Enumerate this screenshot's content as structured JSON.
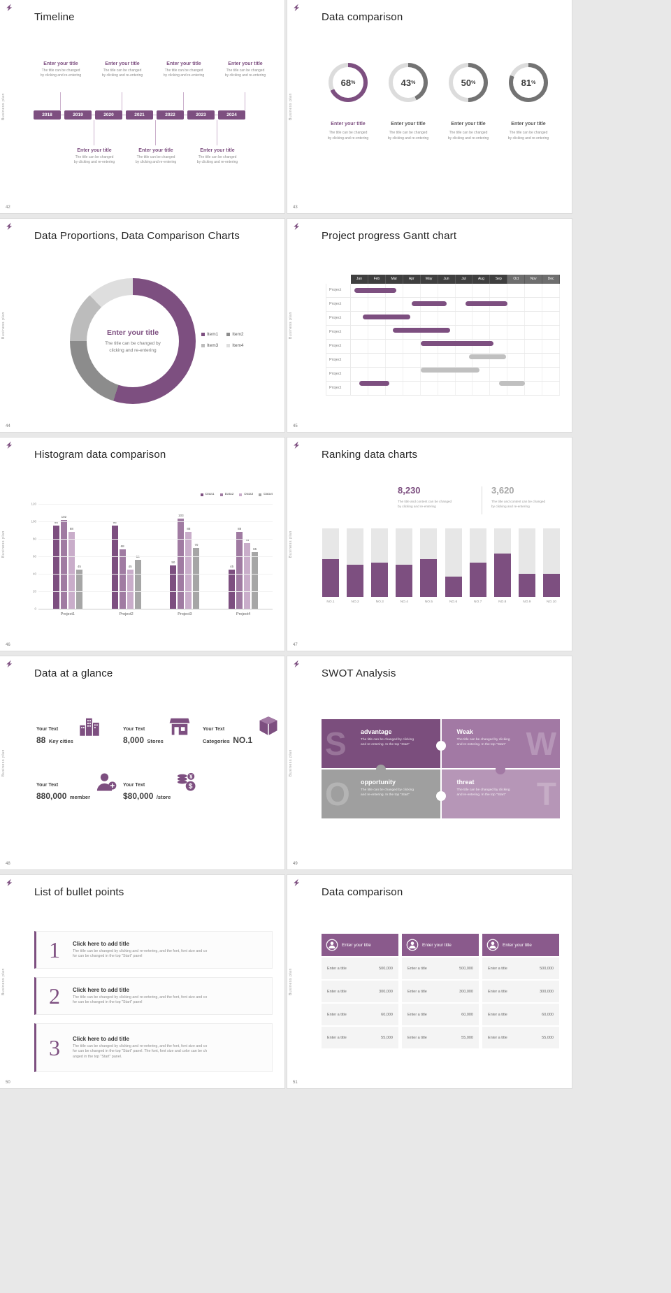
{
  "theme": {
    "purple": "#7d4f80",
    "purple_mid": "#a279a4",
    "purple_light": "#c9adca",
    "purple_pale": "#b696b7",
    "table_header_purple": "#8a5a8c",
    "gray_dark": "#595959",
    "gray_mid": "#a6a6a6",
    "gray_bar": "#c0c0c0",
    "track": "#dcdcdc",
    "gantt_header_dark": "#3f3f3f",
    "gantt_header_light": "#6e6e6e",
    "background": "#e8e8e8"
  },
  "common": {
    "brand_vertical": "Business plan",
    "logo": "brand-logo"
  },
  "slides": {
    "s42": {
      "number": "42",
      "title": "Timeline",
      "years": [
        "2018",
        "2019",
        "2020",
        "2021",
        "2022",
        "2023",
        "2024"
      ],
      "item_title": "Enter your title",
      "caption1": "The title can be changed",
      "caption2": "by clicking and re-entering",
      "top_items": 4,
      "bottom_items": 3
    },
    "s43": {
      "number": "43",
      "title": "Data comparison",
      "caption1": "The title can be changed",
      "caption2": "by clicking and re-entering",
      "rings": [
        {
          "percent": 68,
          "color": "#7d4f80",
          "label": "Enter your title",
          "label_color": "#7d4f80"
        },
        {
          "percent": 43,
          "color": "#737373",
          "label": "Enter your title",
          "label_color": "#595959"
        },
        {
          "percent": 50,
          "color": "#737373",
          "label": "Enter your title",
          "label_color": "#595959"
        },
        {
          "percent": 81,
          "color": "#737373",
          "label": "Enter your title",
          "label_color": "#595959"
        }
      ]
    },
    "s44": {
      "number": "44",
      "title": "Data Proportions, Data Comparison Charts",
      "center_title": "Enter your title",
      "center_line1": "The title can be changed by",
      "center_line2": "clicking and re-entering",
      "chart": {
        "type": "pie",
        "segments": [
          {
            "label": "Item1",
            "value": 55,
            "color": "#7d4f80"
          },
          {
            "label": "Item2",
            "value": 20,
            "color": "#8c8c8c"
          },
          {
            "label": "Item3",
            "value": 13,
            "color": "#bcbcbc"
          },
          {
            "label": "Item4",
            "value": 12,
            "color": "#dedede"
          }
        ]
      }
    },
    "s45": {
      "number": "45",
      "title": "Project progress Gantt chart",
      "months": [
        "Jan",
        "Feb",
        "Mar",
        "Apr",
        "May",
        "Jun",
        "Jul",
        "Aug",
        "Sep",
        "Oct",
        "Nov",
        "Dec"
      ],
      "row_label": "Project",
      "chart": {
        "type": "gantt",
        "rows": [
          {
            "bars": [
              {
                "start": 0.2,
                "end": 2.6,
                "color": "purple"
              }
            ]
          },
          {
            "bars": [
              {
                "start": 3.5,
                "end": 5.5,
                "color": "purple"
              },
              {
                "start": 6.6,
                "end": 9.0,
                "color": "purple"
              }
            ]
          },
          {
            "bars": [
              {
                "start": 0.7,
                "end": 3.4,
                "color": "purple"
              }
            ]
          },
          {
            "bars": [
              {
                "start": 2.4,
                "end": 5.7,
                "color": "purple"
              }
            ]
          },
          {
            "bars": [
              {
                "start": 4.0,
                "end": 8.2,
                "color": "purple"
              }
            ]
          },
          {
            "bars": [
              {
                "start": 6.8,
                "end": 8.9,
                "color": "gray"
              }
            ]
          },
          {
            "bars": [
              {
                "start": 4.0,
                "end": 7.4,
                "color": "gray"
              }
            ]
          },
          {
            "bars": [
              {
                "start": 0.5,
                "end": 2.2,
                "color": "purple"
              },
              {
                "start": 8.5,
                "end": 10.0,
                "color": "gray"
              }
            ]
          }
        ]
      }
    },
    "s46": {
      "number": "46",
      "title": "Histogram data comparison",
      "chart": {
        "type": "bar",
        "categories": [
          "Project1",
          "Project2",
          "Project3",
          "Project4"
        ],
        "series": [
          {
            "name": "Data1",
            "color": "#7d4f80",
            "values": [
              95,
              95,
              50,
              45
            ]
          },
          {
            "name": "Data2",
            "color": "#a07ba2",
            "values": [
              102,
              68,
              103,
              88
            ]
          },
          {
            "name": "Data3",
            "color": "#c9adca",
            "values": [
              88,
              45,
              88,
              75
            ]
          },
          {
            "name": "Data4",
            "color": "#a6a6a6",
            "values": [
              45,
              56,
              70,
              65
            ]
          }
        ],
        "ymax": 120,
        "yticks": [
          0,
          20,
          40,
          60,
          80,
          100,
          120
        ]
      }
    },
    "s47": {
      "number": "47",
      "title": "Ranking data charts",
      "stat1": {
        "value": "8,230",
        "color": "#7d4f80",
        "line1": "The title and content can be changed",
        "line2": "by clicking and re-entering"
      },
      "stat2": {
        "value": "3,620",
        "color": "#a6a6a6",
        "line1": "The title and content can be changed",
        "line2": "by clicking and re-entering"
      },
      "chart": {
        "type": "bar",
        "categories": [
          "NO.1",
          "NO.2",
          "NO.3",
          "NO.4",
          "NO.5",
          "NO.6",
          "NO.7",
          "NO.8",
          "NO.9",
          "NO.10"
        ],
        "values": [
          55,
          47,
          50,
          47,
          55,
          30,
          50,
          63,
          34,
          34
        ],
        "max": 100,
        "bar_color": "#7d4f80",
        "track_color": "#e7e7e7"
      }
    },
    "s48": {
      "number": "48",
      "title": "Data at a glance",
      "stats": [
        {
          "label": "Your Text",
          "value": "88",
          "unit": "Key cities",
          "icon": "city-icon"
        },
        {
          "label": "Your Text",
          "value": "8,000",
          "unit": "Stores",
          "icon": "store-icon"
        },
        {
          "label": "Your Text",
          "prefix": "Categories",
          "value": "NO.1",
          "icon": "package-icon"
        },
        {
          "label": "Your Text",
          "value": "880,000",
          "unit": "member",
          "icon": "member-icon"
        },
        {
          "label": "Your Text",
          "value": "$80,000",
          "unit": "/store",
          "icon": "money-icon"
        }
      ]
    },
    "s49": {
      "number": "49",
      "title": "SWOT Analysis",
      "pieces": [
        {
          "letter": "S",
          "heading": "advantage",
          "color": "#7b4e7d",
          "line1": "The title can be changed by clicking",
          "line2": "and re-entering. In the top \"Start\""
        },
        {
          "letter": "W",
          "heading": "Weak",
          "color": "#a279a4",
          "line1": "The title can be changed by clicking",
          "line2": "and re-entering. In the top \"Start\""
        },
        {
          "letter": "O",
          "heading": "opportunity",
          "color": "#9f9f9f",
          "line1": "The title can be changed by clicking",
          "line2": "and re-entering. In the top \"Start\""
        },
        {
          "letter": "T",
          "heading": "threat",
          "color": "#b696b7",
          "line1": "The title can be changed by clicking",
          "line2": "and re-entering. In the top \"Start\""
        }
      ]
    },
    "s50": {
      "number": "50",
      "title": "List of bullet points",
      "items": [
        {
          "num": "1",
          "heading": "Click here to add title",
          "lines": [
            "The title can be changed by clicking and re-entering, and the font, font size and co",
            "for can be changed in the top \"Start\" panel"
          ]
        },
        {
          "num": "2",
          "heading": "Click here to add title",
          "lines": [
            "The title can be changed by clicking and re-entering, and the font, font size and co",
            "for can be changed in the top \"Start\" panel"
          ]
        },
        {
          "num": "3",
          "heading": "Click here to add title",
          "lines": [
            "The title can be changed by clicking and re-entering, and the font, font size and co",
            "for can be changed in the top \"Start\" panel. The font, font size and color can be ch",
            "anged in the top \"Start\" panel."
          ]
        }
      ]
    },
    "s51": {
      "number": "51",
      "title": "Data comparison",
      "tables": [
        {
          "header": "Enter your title",
          "icon": "person-icon",
          "rows": [
            {
              "label": "Enter a title",
              "value": "500,000"
            },
            {
              "label": "Enter a title",
              "value": "300,000"
            },
            {
              "label": "Enter a title",
              "value": "60,000"
            },
            {
              "label": "Enter a title",
              "value": "55,000"
            }
          ]
        },
        {
          "header": "Enter your title",
          "icon": "person-icon",
          "rows": [
            {
              "label": "Enter a title",
              "value": "500,000"
            },
            {
              "label": "Enter a title",
              "value": "300,000"
            },
            {
              "label": "Enter a title",
              "value": "60,000"
            },
            {
              "label": "Enter a title",
              "value": "55,000"
            }
          ]
        },
        {
          "header": "Enter your title",
          "icon": "person-icon",
          "rows": [
            {
              "label": "Enter a title",
              "value": "500,000"
            },
            {
              "label": "Enter a title",
              "value": "300,000"
            },
            {
              "label": "Enter a title",
              "value": "60,000"
            },
            {
              "label": "Enter a title",
              "value": "55,000"
            }
          ]
        }
      ]
    }
  }
}
